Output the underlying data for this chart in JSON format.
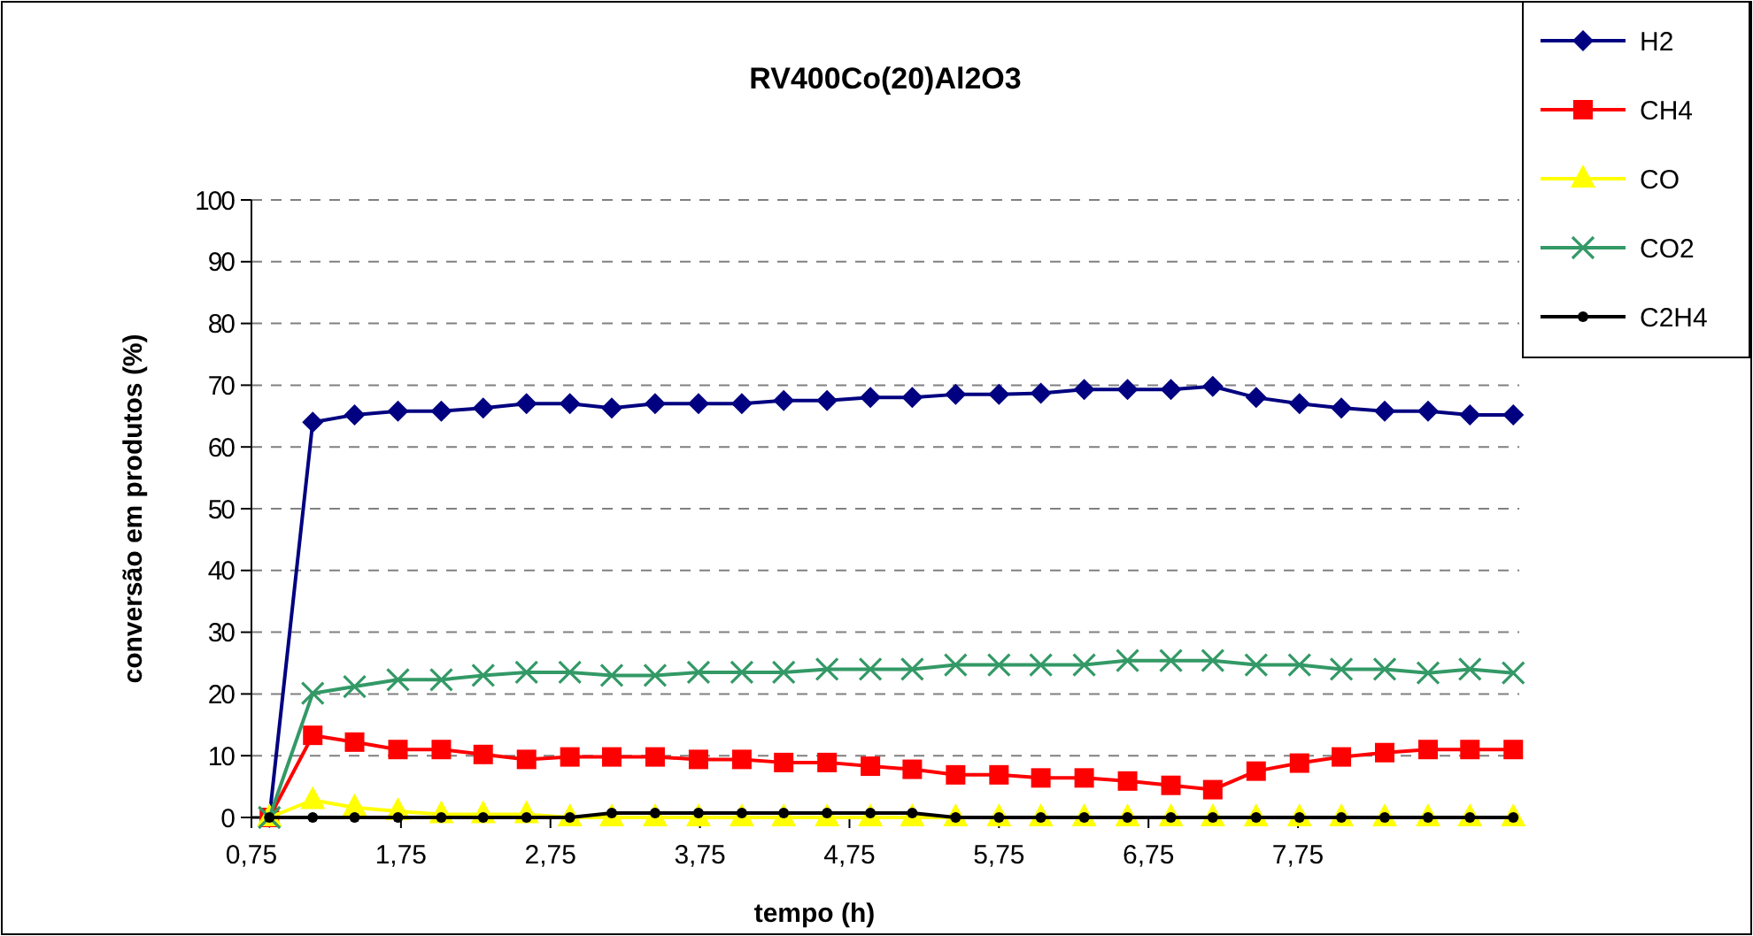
{
  "chart_data": {
    "type": "line",
    "title": "RV400Co(20)Al2O3",
    "xlabel": "tempo (h)",
    "ylabel": "conversão em produtos (%)",
    "x": [
      0.87,
      1.16,
      1.44,
      1.73,
      2.02,
      2.3,
      2.59,
      2.88,
      3.16,
      3.45,
      3.74,
      4.03,
      4.31,
      4.6,
      4.89,
      5.17,
      5.46,
      5.75,
      6.03,
      6.32,
      6.61,
      6.9,
      7.18,
      7.47,
      7.76,
      8.04,
      8.33,
      8.62,
      8.9,
      9.19
    ],
    "xlim": [
      0.75,
      9.23
    ],
    "xticks": [
      {
        "value": 0.75,
        "label": "0,75"
      },
      {
        "value": 1.75,
        "label": "1,75"
      },
      {
        "value": 2.75,
        "label": "2,75"
      },
      {
        "value": 3.75,
        "label": "3,75"
      },
      {
        "value": 4.75,
        "label": "4,75"
      },
      {
        "value": 5.75,
        "label": "5,75"
      },
      {
        "value": 6.75,
        "label": "6,75"
      },
      {
        "value": 7.75,
        "label": "7,75"
      }
    ],
    "ylim": [
      0,
      100
    ],
    "yticks": [
      0,
      10,
      20,
      30,
      40,
      50,
      60,
      70,
      80,
      90,
      100
    ],
    "grid": "y",
    "legend": "top right",
    "line_style": "solid",
    "series": [
      {
        "name": "H2",
        "color": "#000080",
        "marker": "diamond",
        "values": [
          0,
          64,
          65.2,
          65.8,
          65.8,
          66.3,
          67,
          67,
          66.3,
          67,
          67,
          67,
          67.5,
          67.5,
          68,
          68,
          68.5,
          68.5,
          68.7,
          69.3,
          69.3,
          69.3,
          69.8,
          68,
          67,
          66.3,
          65.8,
          65.8,
          65.2,
          65.2
        ]
      },
      {
        "name": "CH4",
        "color": "#ff0000",
        "marker": "square",
        "values": [
          0,
          13.3,
          12.2,
          11,
          11,
          10.2,
          9.4,
          9.8,
          9.8,
          9.8,
          9.4,
          9.4,
          8.9,
          8.9,
          8.3,
          7.8,
          6.9,
          6.9,
          6.4,
          6.4,
          5.9,
          5.2,
          4.5,
          7.5,
          8.8,
          9.8,
          10.5,
          11,
          11,
          11
        ]
      },
      {
        "name": "CO",
        "color": "#ffff00",
        "marker": "triangle",
        "values": [
          0,
          2.8,
          1.6,
          1,
          0.5,
          0.5,
          0.5,
          0,
          0,
          0,
          0,
          0,
          0,
          0,
          0,
          0,
          0,
          0,
          0,
          0,
          0,
          0,
          0,
          0,
          0,
          0,
          0,
          0,
          0,
          0
        ]
      },
      {
        "name": "CO2",
        "color": "#339966",
        "marker": "cross",
        "values": [
          0,
          20.1,
          21.2,
          22.3,
          22.3,
          23,
          23.5,
          23.5,
          23,
          23,
          23.5,
          23.5,
          23.5,
          24,
          24,
          24,
          24.7,
          24.7,
          24.7,
          24.7,
          25.4,
          25.4,
          25.4,
          24.7,
          24.7,
          24,
          24,
          23.4,
          24,
          23.4
        ]
      },
      {
        "name": "C2H4",
        "color": "#000000",
        "marker": "circle",
        "values": [
          0,
          0,
          0,
          0,
          0,
          0,
          0,
          0,
          0.7,
          0.7,
          0.7,
          0.7,
          0.7,
          0.7,
          0.7,
          0.7,
          0,
          0,
          0,
          0,
          0,
          0,
          0,
          0,
          0,
          0,
          0,
          0,
          0,
          0
        ]
      }
    ]
  }
}
